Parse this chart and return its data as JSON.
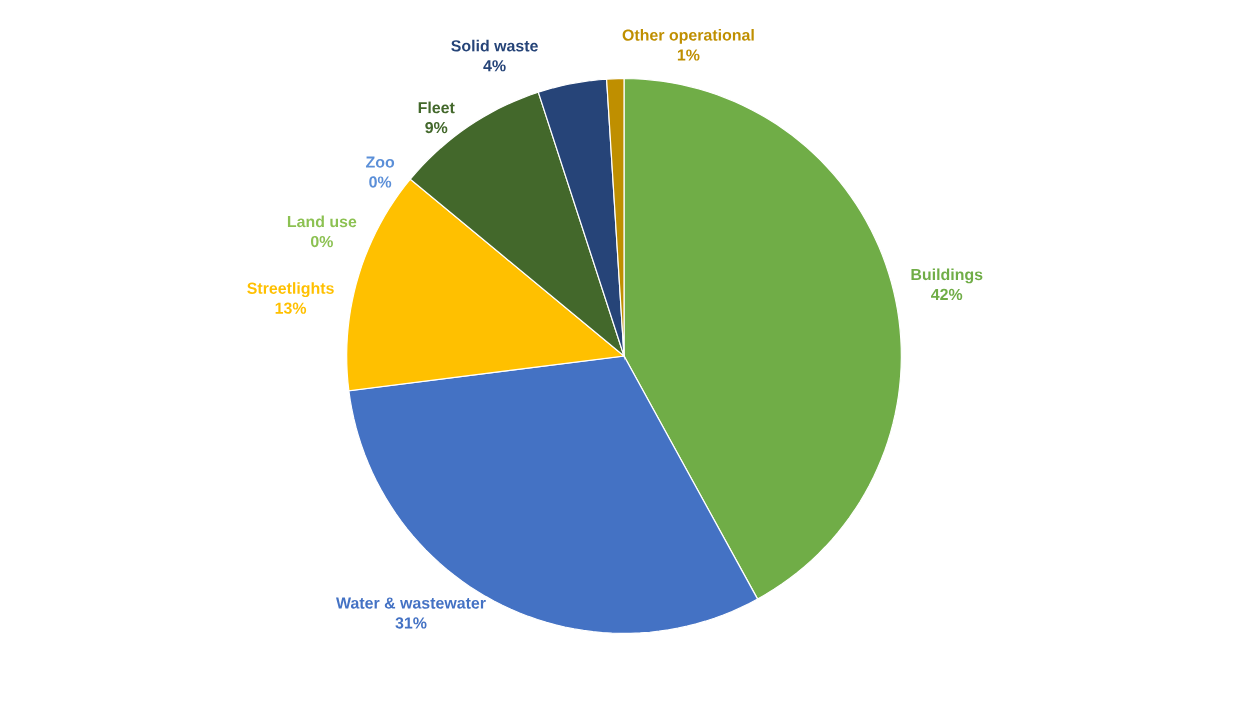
{
  "chart_data": {
    "type": "pie",
    "categories": [
      "Buildings",
      "Water & wastewater",
      "Streetlights",
      "Land use",
      "Zoo",
      "Fleet",
      "Solid waste",
      "Other operational"
    ],
    "values": [
      42,
      31,
      13,
      0,
      0,
      9,
      4,
      1
    ],
    "value_labels": [
      "42%",
      "31%",
      "13%",
      "0%",
      "0%",
      "9%",
      "4%",
      "1%"
    ],
    "colors": [
      "#70ad47",
      "#4472c4",
      "#ffc000",
      "#8cc152",
      "#5b8fd8",
      "#43682b",
      "#264478",
      "#bf8f00"
    ]
  }
}
